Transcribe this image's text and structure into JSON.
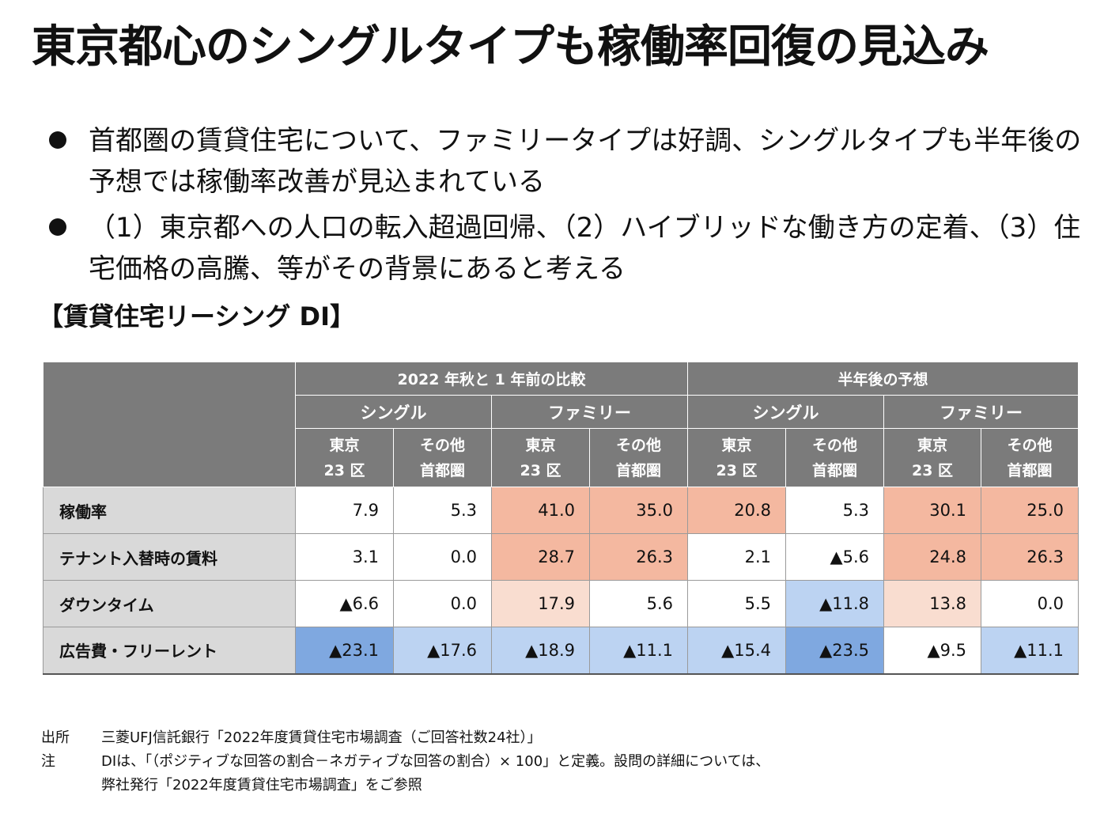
{
  "title": "東京都心のシングルタイプも稼働率回復の見込み",
  "bullets": [
    "首都圏の賃貸住宅について、ファミリータイプは好調、シングルタイプも半年後の予想では稼働率改善が見込まれている",
    "（1）東京都への人口の転入超過回帰、（2）ハイブリッドな働き方の定着、（3）住宅価格の高騰、等がその背景にあると考える"
  ],
  "subtitle": "【賃貸住宅リーシング DI】",
  "table": {
    "header_groups": [
      "2022 年秋と 1 年前の比較",
      "半年後の予想"
    ],
    "header_types": [
      "シングル",
      "ファミリー",
      "シングル",
      "ファミリー"
    ],
    "header_regions": [
      [
        "東京",
        "23 区"
      ],
      [
        "その他",
        "首都圏"
      ],
      [
        "東京",
        "23 区"
      ],
      [
        "その他",
        "首都圏"
      ],
      [
        "東京",
        "23 区"
      ],
      [
        "その他",
        "首都圏"
      ],
      [
        "東京",
        "23 区"
      ],
      [
        "その他",
        "首都圏"
      ]
    ],
    "rows": [
      {
        "label": "稼働率",
        "cells": [
          {
            "v": "7.9",
            "bg": "#ffffff"
          },
          {
            "v": "5.3",
            "bg": "#ffffff"
          },
          {
            "v": "41.0",
            "bg": "#f4b8a0"
          },
          {
            "v": "35.0",
            "bg": "#f4b8a0"
          },
          {
            "v": "20.8",
            "bg": "#f4b8a0"
          },
          {
            "v": "5.3",
            "bg": "#ffffff"
          },
          {
            "v": "30.1",
            "bg": "#f4b8a0"
          },
          {
            "v": "25.0",
            "bg": "#f4b8a0"
          }
        ]
      },
      {
        "label": "テナント入替時の賃料",
        "cells": [
          {
            "v": "3.1",
            "bg": "#ffffff"
          },
          {
            "v": "0.0",
            "bg": "#ffffff"
          },
          {
            "v": "28.7",
            "bg": "#f4b8a0"
          },
          {
            "v": "26.3",
            "bg": "#f4b8a0"
          },
          {
            "v": "2.1",
            "bg": "#ffffff"
          },
          {
            "v": "▲5.6",
            "bg": "#ffffff"
          },
          {
            "v": "24.8",
            "bg": "#f4b8a0"
          },
          {
            "v": "26.3",
            "bg": "#f4b8a0"
          }
        ]
      },
      {
        "label": "ダウンタイム",
        "cells": [
          {
            "v": "▲6.6",
            "bg": "#ffffff"
          },
          {
            "v": "0.0",
            "bg": "#ffffff"
          },
          {
            "v": "17.9",
            "bg": "#f9ddd0"
          },
          {
            "v": "5.6",
            "bg": "#ffffff"
          },
          {
            "v": "5.5",
            "bg": "#ffffff"
          },
          {
            "v": "▲11.8",
            "bg": "#bcd3f2"
          },
          {
            "v": "13.8",
            "bg": "#f9ddd0"
          },
          {
            "v": "0.0",
            "bg": "#ffffff"
          }
        ]
      },
      {
        "label": "広告費・フリーレント",
        "cells": [
          {
            "v": "▲23.1",
            "bg": "#7fa8e0"
          },
          {
            "v": "▲17.6",
            "bg": "#bcd3f2"
          },
          {
            "v": "▲18.9",
            "bg": "#bcd3f2"
          },
          {
            "v": "▲11.1",
            "bg": "#bcd3f2"
          },
          {
            "v": "▲15.4",
            "bg": "#bcd3f2"
          },
          {
            "v": "▲23.5",
            "bg": "#7fa8e0"
          },
          {
            "v": "▲9.5",
            "bg": "#ffffff"
          },
          {
            "v": "▲11.1",
            "bg": "#bcd3f2"
          }
        ]
      }
    ]
  },
  "notes": [
    {
      "key": "出所",
      "lines": [
        "三菱UFJ信託銀行「2022年度賃貸住宅市場調査（ご回答社数24社）」"
      ]
    },
    {
      "key": "注",
      "lines": [
        "DIは、「（ポジティブな回答の割合－ネガティブな回答の割合）× 100」と定義。設問の詳細については、",
        "弊社発行「2022年度賃貸住宅市場調査」をご参照"
      ]
    }
  ]
}
